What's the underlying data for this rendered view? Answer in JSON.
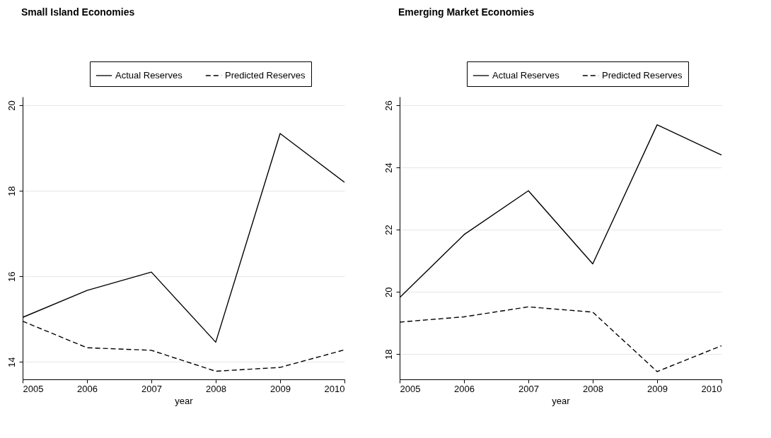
{
  "chart_data": [
    {
      "type": "line",
      "title": "Small Island Economies",
      "xlabel": "year",
      "x": [
        2005,
        2006,
        2007,
        2008,
        2009,
        2010
      ],
      "xlim": [
        2005,
        2010
      ],
      "xticks": [
        2005,
        2006,
        2007,
        2008,
        2009,
        2010
      ],
      "ylim": [
        13.59,
        20.2
      ],
      "yticks": [
        14,
        16,
        18,
        20
      ],
      "grid": "y",
      "legend": "top",
      "marker": "none",
      "series": [
        {
          "name": "Actual Reserves",
          "color": "#000000",
          "line_style": "solid",
          "values": [
            15.04,
            15.67,
            16.1,
            14.46,
            19.34,
            18.2
          ]
        },
        {
          "name": "Predicted Reserves",
          "color": "#000000",
          "line_style": "dashed",
          "values": [
            14.95,
            14.33,
            14.27,
            13.78,
            13.87,
            14.28
          ]
        }
      ]
    },
    {
      "type": "line",
      "title": "Emerging Market Economies",
      "xlabel": "year",
      "x": [
        2005,
        2006,
        2007,
        2008,
        2009,
        2010
      ],
      "xlim": [
        2005,
        2010
      ],
      "xticks": [
        2005,
        2006,
        2007,
        2008,
        2009,
        2010
      ],
      "ylim": [
        17.19,
        26.27
      ],
      "yticks": [
        18,
        20,
        22,
        24,
        26
      ],
      "grid": "y",
      "legend": "top",
      "marker": "none",
      "series": [
        {
          "name": "Actual Reserves",
          "color": "#000000",
          "line_style": "solid",
          "values": [
            19.82,
            21.84,
            23.25,
            20.9,
            25.37,
            24.4
          ]
        },
        {
          "name": "Predicted Reserves",
          "color": "#000000",
          "line_style": "dashed",
          "values": [
            19.03,
            19.2,
            19.52,
            19.35,
            17.44,
            18.27
          ]
        }
      ]
    }
  ]
}
